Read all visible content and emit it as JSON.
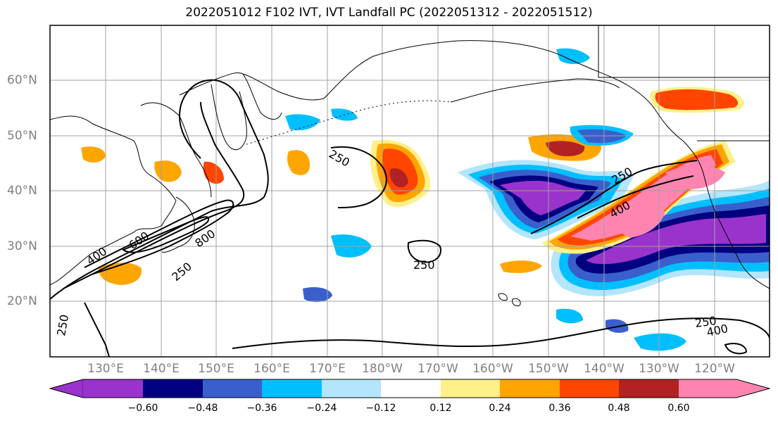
{
  "title": "2022051012 F102 IVT, IVT Landfall PC (2022051312 - 2022051512)",
  "lat_labels": [
    "60°N",
    "50°N",
    "40°N",
    "30°N",
    "20°N"
  ],
  "lon_labels": [
    "130°E",
    "140°E",
    "150°E",
    "160°E",
    "170°E",
    "180°W",
    "170°W",
    "160°W",
    "150°W",
    "140°W",
    "130°W",
    "120°W"
  ],
  "contour_labels": [
    "250",
    "400",
    "600",
    "800",
    "250",
    "250",
    "250",
    "250",
    "400",
    "250",
    "400",
    "250"
  ],
  "colorbar": {
    "tick_labels": [
      "−0.60",
      "−0.48",
      "−0.36",
      "−0.24",
      "−0.12",
      "0.12",
      "0.24",
      "0.36",
      "0.48",
      "0.60"
    ],
    "colors": [
      "#9933cc",
      "#000080",
      "#3a5fcd",
      "#00bfff",
      "#b3e5fc",
      "#ffffff",
      "#fff08a",
      "#ffa500",
      "#ff4500",
      "#b22222",
      "#ff85b0"
    ]
  },
  "colors": {
    "frame": "#000000",
    "grid": "#a0a0a0",
    "coast": "#000000"
  }
}
